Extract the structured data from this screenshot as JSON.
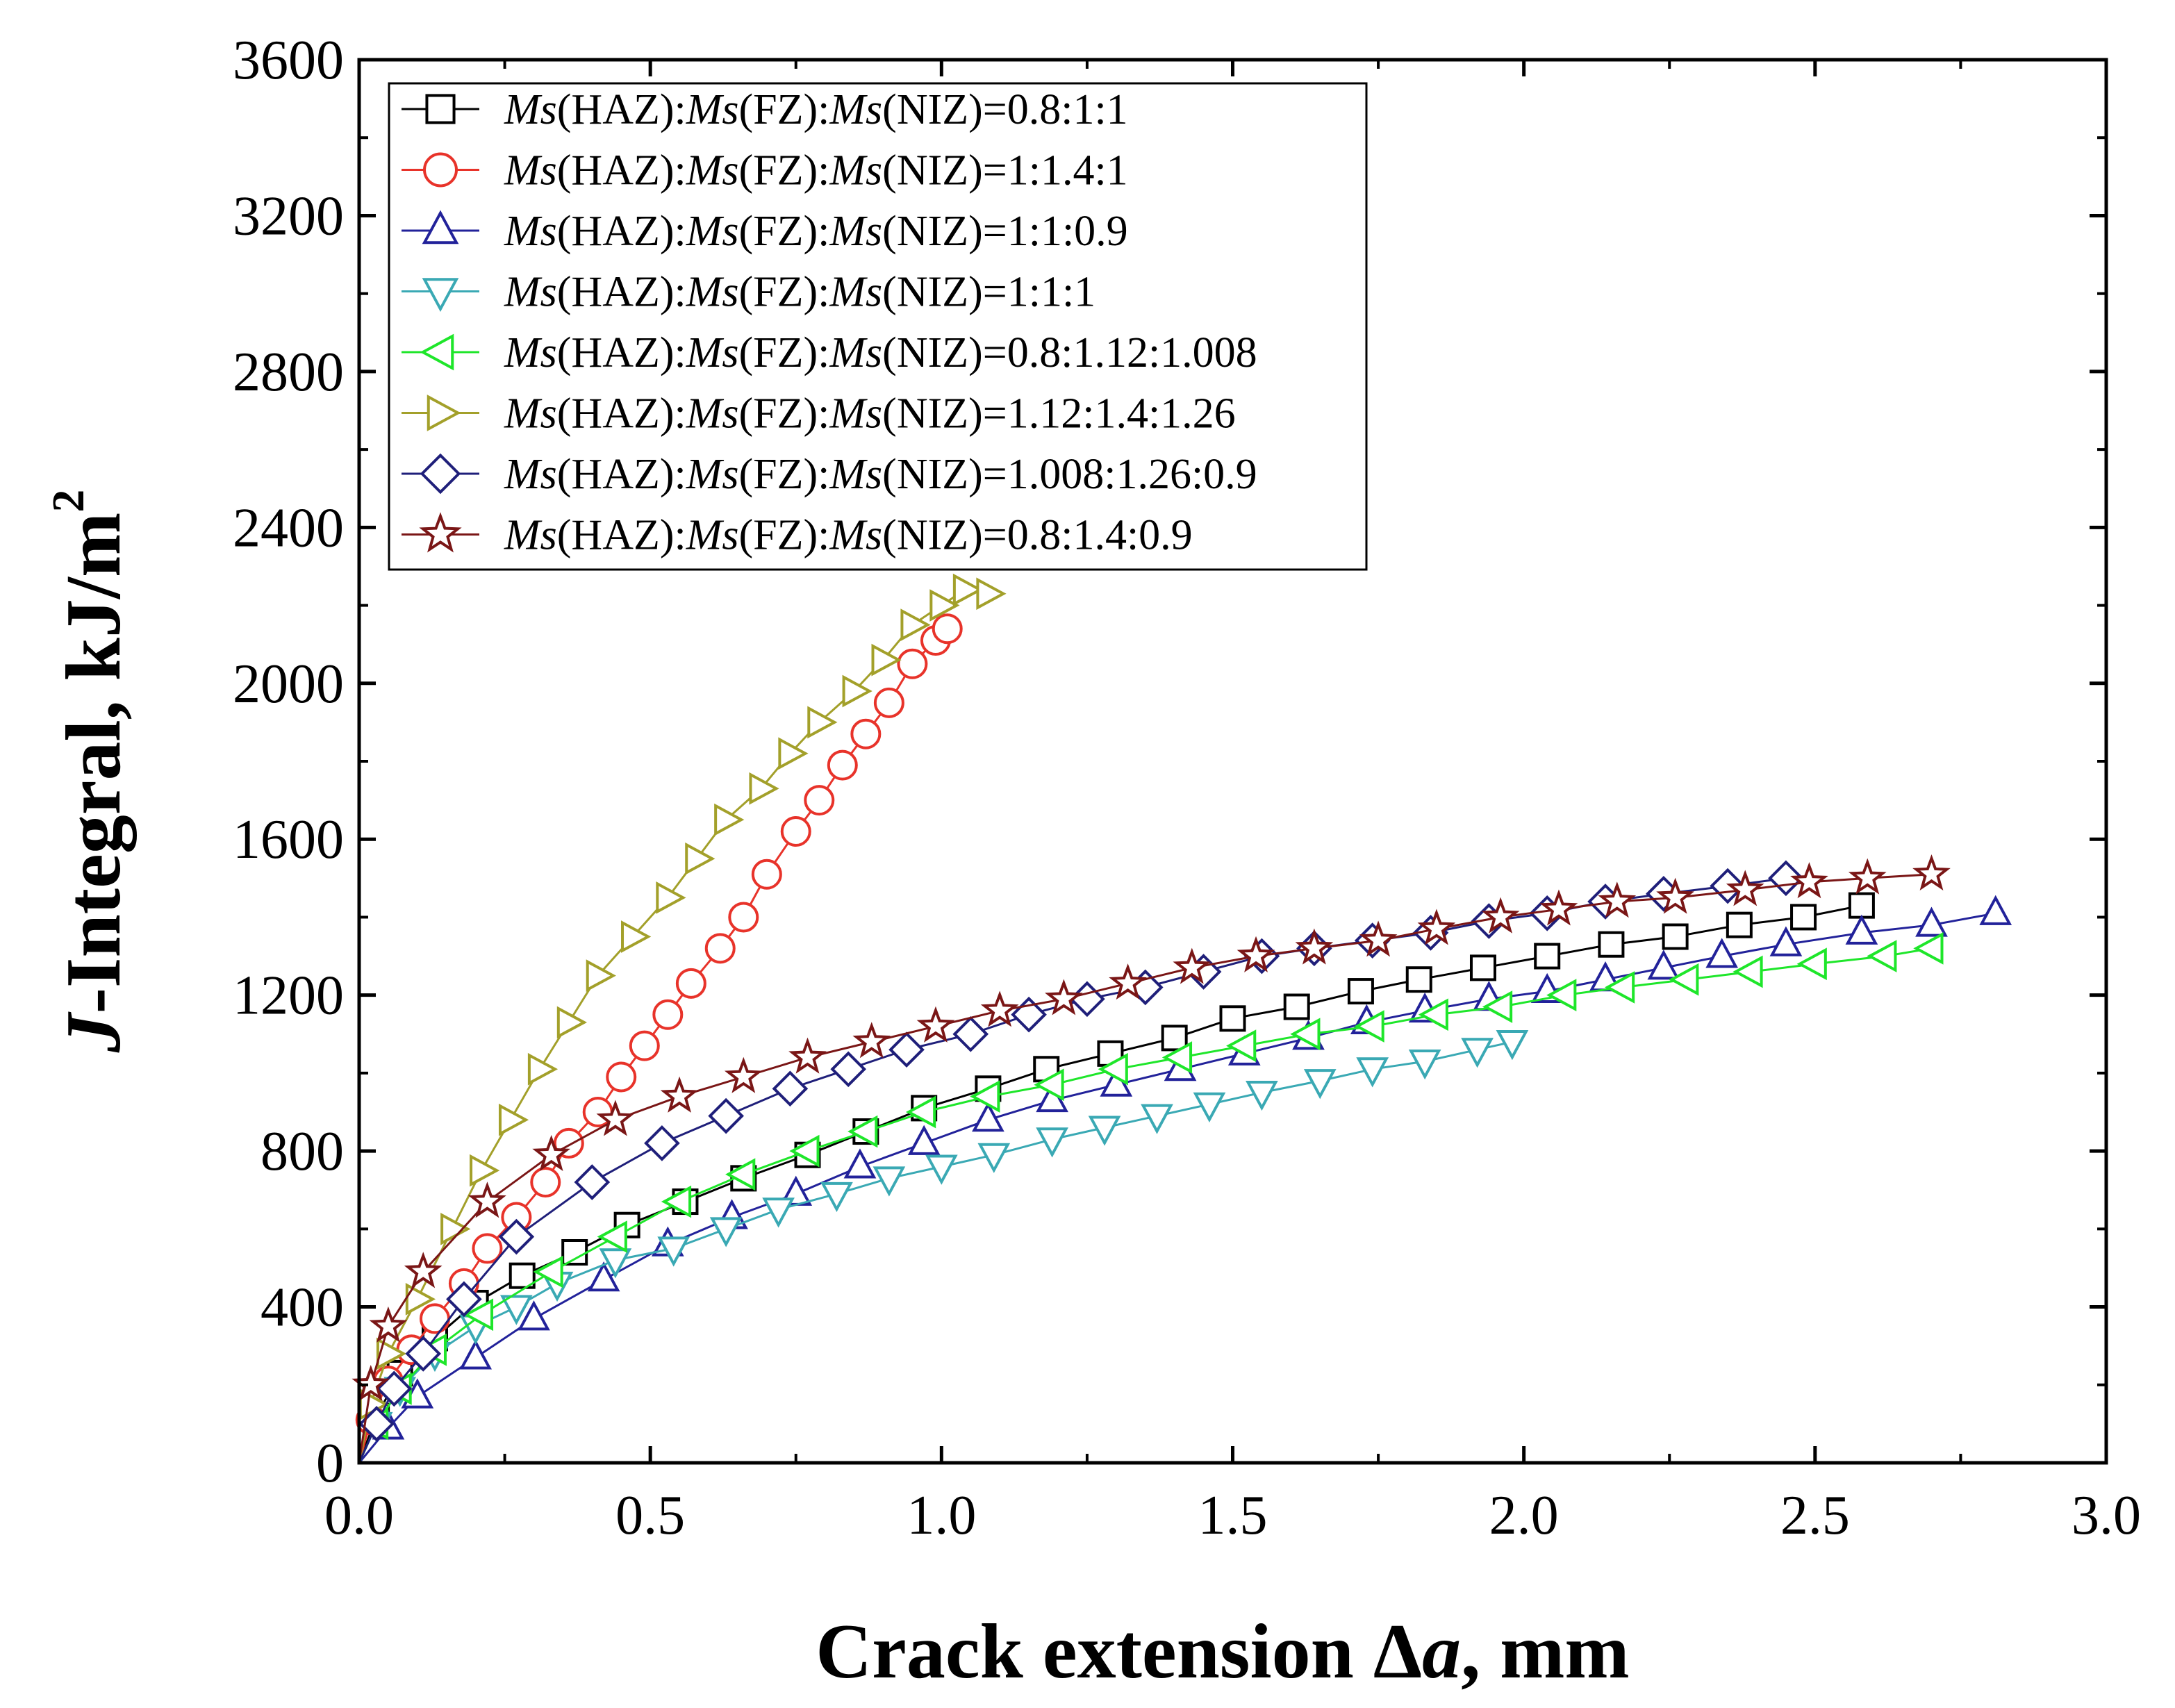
{
  "chart_data": {
    "type": "line",
    "xlabel": {
      "italic": "",
      "normal": "Crack extension Δ",
      "italic2": "a",
      "normal2": ", mm"
    },
    "ylabel": {
      "italic": "J",
      "normal": "-Integral, kJ/m",
      "sup": "2"
    },
    "xlim": [
      0.0,
      3.0
    ],
    "ylim": [
      0,
      3600
    ],
    "xticks": [
      "0.0",
      "0.5",
      "1.0",
      "1.5",
      "2.0",
      "2.5",
      "3.0"
    ],
    "yticks": [
      "0",
      "400",
      "800",
      "1200",
      "1600",
      "2000",
      "2400",
      "2800",
      "3200",
      "3600"
    ],
    "legend_position": "top-left",
    "series": [
      {
        "name": "Ms(HAZ):Ms(FZ):Ms(NIZ)=0.8:1:1",
        "ratio": "0.8:1:1",
        "color": "#000000",
        "marker": "square",
        "x": [
          0.0,
          0.03,
          0.07,
          0.13,
          0.2,
          0.28,
          0.37,
          0.46,
          0.56,
          0.66,
          0.77,
          0.87,
          0.97,
          1.08,
          1.18,
          1.29,
          1.4,
          1.5,
          1.61,
          1.72,
          1.82,
          1.93,
          2.04,
          2.15,
          2.26,
          2.37,
          2.48,
          2.58
        ],
        "y": [
          0,
          120,
          230,
          320,
          410,
          480,
          540,
          610,
          670,
          730,
          790,
          850,
          910,
          960,
          1010,
          1050,
          1090,
          1140,
          1170,
          1210,
          1240,
          1270,
          1300,
          1330,
          1350,
          1380,
          1400,
          1430
        ]
      },
      {
        "name": "Ms(HAZ):Ms(FZ):Ms(NIZ)=1:1.4:1",
        "ratio": "1:1.4:1",
        "color": "#e8332a",
        "marker": "circle",
        "x": [
          0.0,
          0.02,
          0.05,
          0.09,
          0.13,
          0.18,
          0.22,
          0.27,
          0.32,
          0.36,
          0.41,
          0.45,
          0.49,
          0.53,
          0.57,
          0.62,
          0.66,
          0.7,
          0.75,
          0.79,
          0.83,
          0.87,
          0.91,
          0.95,
          0.99,
          1.01
        ],
        "y": [
          0,
          110,
          210,
          290,
          370,
          460,
          550,
          630,
          720,
          820,
          900,
          990,
          1070,
          1150,
          1230,
          1320,
          1400,
          1510,
          1620,
          1700,
          1790,
          1870,
          1950,
          2050,
          2110,
          2140
        ]
      },
      {
        "name": "Ms(HAZ):Ms(FZ):Ms(NIZ)=1:1:0.9",
        "ratio": "1:1:0.9",
        "color": "#22229a",
        "marker": "triangle-up",
        "x": [
          0.0,
          0.05,
          0.1,
          0.2,
          0.3,
          0.42,
          0.53,
          0.64,
          0.75,
          0.86,
          0.97,
          1.08,
          1.19,
          1.3,
          1.41,
          1.52,
          1.63,
          1.73,
          1.83,
          1.94,
          2.04,
          2.14,
          2.24,
          2.34,
          2.45,
          2.58,
          2.7,
          2.81
        ],
        "y": [
          0,
          90,
          170,
          270,
          370,
          470,
          560,
          630,
          690,
          760,
          820,
          880,
          930,
          970,
          1010,
          1050,
          1090,
          1130,
          1160,
          1190,
          1210,
          1240,
          1270,
          1300,
          1330,
          1360,
          1380,
          1410
        ]
      },
      {
        "name": "Ms(HAZ):Ms(FZ):Ms(NIZ)=1:1:1",
        "ratio": "1:1:1",
        "color": "#3aa9b4",
        "marker": "triangle-down",
        "x": [
          0.0,
          0.03,
          0.07,
          0.13,
          0.2,
          0.27,
          0.34,
          0.44,
          0.54,
          0.63,
          0.72,
          0.82,
          0.91,
          1.0,
          1.09,
          1.19,
          1.28,
          1.37,
          1.46,
          1.55,
          1.65,
          1.74,
          1.83,
          1.92,
          1.98
        ],
        "y": [
          0,
          100,
          190,
          280,
          350,
          400,
          460,
          520,
          550,
          600,
          650,
          690,
          730,
          760,
          790,
          830,
          860,
          890,
          920,
          950,
          980,
          1010,
          1030,
          1060,
          1080
        ]
      },
      {
        "name": "Ms(HAZ):Ms(FZ):Ms(NIZ)=0.8:1.12:1.008",
        "ratio": "0.8:1.12:1.008",
        "color": "#1ee62a",
        "marker": "triangle-left",
        "x": [
          0.0,
          0.03,
          0.07,
          0.13,
          0.21,
          0.33,
          0.44,
          0.55,
          0.66,
          0.77,
          0.87,
          0.97,
          1.08,
          1.19,
          1.3,
          1.41,
          1.52,
          1.63,
          1.74,
          1.85,
          1.96,
          2.07,
          2.17,
          2.28,
          2.39,
          2.5,
          2.62,
          2.7
        ],
        "y": [
          0,
          100,
          190,
          290,
          380,
          490,
          580,
          670,
          740,
          800,
          850,
          900,
          940,
          970,
          1010,
          1040,
          1070,
          1100,
          1120,
          1150,
          1170,
          1200,
          1220,
          1240,
          1260,
          1280,
          1300,
          1320
        ]
      },
      {
        "name": "Ms(HAZ):Ms(FZ):Ms(NIZ)=1.12:1.4:1.26",
        "ratio": "1.12:1.4:1.26",
        "color": "#a3a02a",
        "marker": "triangle-right",
        "x": [
          0.0,
          0.02,
          0.05,
          0.1,
          0.16,
          0.21,
          0.26,
          0.31,
          0.36,
          0.41,
          0.47,
          0.53,
          0.58,
          0.63,
          0.69,
          0.74,
          0.79,
          0.85,
          0.9,
          0.95,
          1.0,
          1.04,
          1.08
        ],
        "y": [
          0,
          150,
          280,
          420,
          600,
          750,
          880,
          1010,
          1130,
          1250,
          1350,
          1450,
          1550,
          1650,
          1730,
          1820,
          1900,
          1980,
          2060,
          2150,
          2200,
          2240,
          2230
        ]
      },
      {
        "name": "Ms(HAZ):Ms(FZ):Ms(NIZ)=1.008:1.26:0.9",
        "ratio": "1.008:1.26:0.9",
        "color": "#1f1f7a",
        "marker": "diamond",
        "x": [
          0.0,
          0.03,
          0.06,
          0.11,
          0.18,
          0.27,
          0.4,
          0.52,
          0.63,
          0.74,
          0.84,
          0.94,
          1.05,
          1.15,
          1.25,
          1.35,
          1.45,
          1.55,
          1.64,
          1.74,
          1.84,
          1.94,
          2.04,
          2.14,
          2.24,
          2.35,
          2.45
        ],
        "y": [
          0,
          100,
          190,
          280,
          420,
          580,
          720,
          820,
          890,
          960,
          1010,
          1060,
          1100,
          1150,
          1190,
          1220,
          1260,
          1300,
          1320,
          1340,
          1360,
          1390,
          1410,
          1440,
          1460,
          1480,
          1500
        ]
      },
      {
        "name": "Ms(HAZ):Ms(FZ):Ms(NIZ)=0.8:1.4:0.9",
        "ratio": "0.8:1.4:0.9",
        "color": "#7a1616",
        "marker": "star",
        "x": [
          0.0,
          0.02,
          0.05,
          0.11,
          0.22,
          0.33,
          0.44,
          0.55,
          0.66,
          0.77,
          0.88,
          0.99,
          1.1,
          1.21,
          1.32,
          1.43,
          1.54,
          1.64,
          1.75,
          1.85,
          1.96,
          2.06,
          2.16,
          2.26,
          2.38,
          2.49,
          2.59,
          2.7
        ],
        "y": [
          0,
          200,
          350,
          490,
          670,
          790,
          880,
          940,
          990,
          1040,
          1080,
          1120,
          1160,
          1190,
          1230,
          1270,
          1300,
          1320,
          1340,
          1370,
          1400,
          1420,
          1440,
          1450,
          1470,
          1490,
          1500,
          1510
        ]
      }
    ]
  }
}
